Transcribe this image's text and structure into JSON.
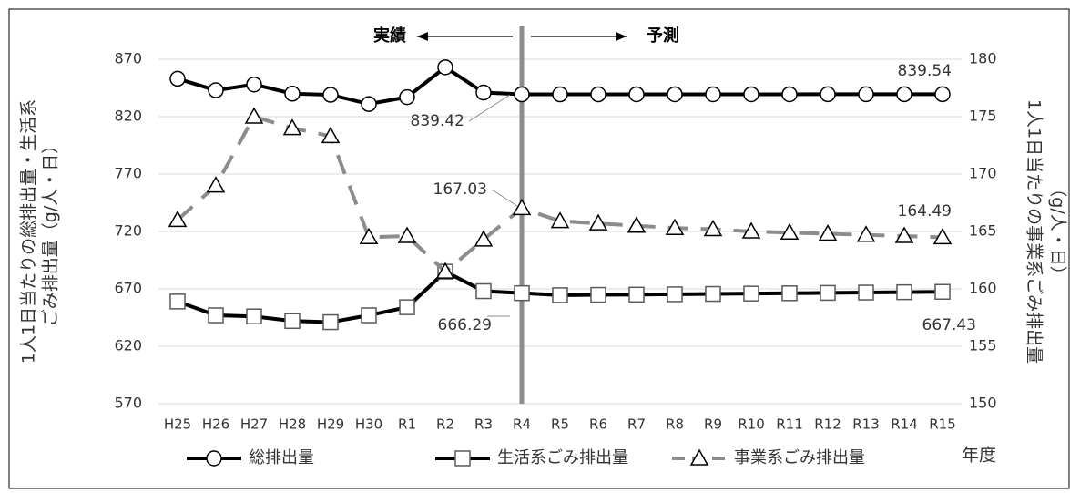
{
  "chart_data": {
    "type": "line",
    "categories": [
      "H25",
      "H26",
      "H27",
      "H28",
      "H29",
      "H30",
      "R1",
      "R2",
      "R3",
      "R4",
      "R5",
      "R6",
      "R7",
      "R8",
      "R9",
      "R10",
      "R11",
      "R12",
      "R13",
      "R14",
      "R15"
    ],
    "series": [
      {
        "name": "総排出量",
        "color": "#000000",
        "line_style": "solid",
        "marker": "circle",
        "values": [
          853,
          843,
          848,
          840,
          839,
          831,
          837,
          863,
          841,
          839.42,
          839.43,
          839.44,
          839.45,
          839.46,
          839.47,
          839.48,
          839.49,
          839.5,
          839.51,
          839.52,
          839.54
        ],
        "value_labels": [
          null,
          null,
          null,
          null,
          null,
          null,
          null,
          null,
          null,
          "839.42",
          null,
          null,
          null,
          null,
          null,
          null,
          null,
          null,
          null,
          null,
          "839.54"
        ]
      },
      {
        "name": "生活系ごみ排出量",
        "color": "#000000",
        "line_style": "solid",
        "marker": "square",
        "values": [
          659,
          647,
          646,
          642,
          641,
          647,
          654,
          685,
          668,
          666.29,
          664.5,
          664.8,
          665,
          665.3,
          665.6,
          665.9,
          666.2,
          666.5,
          666.8,
          667.1,
          667.43
        ],
        "value_labels": [
          null,
          null,
          null,
          null,
          null,
          null,
          null,
          null,
          null,
          "666.29",
          null,
          null,
          null,
          null,
          null,
          null,
          null,
          null,
          null,
          null,
          "667.43"
        ]
      },
      {
        "name": "事業系ごみ排出量",
        "color": "#8c8c8c",
        "line_style": "dashed",
        "marker": "triangle",
        "axis": "y2",
        "values": [
          166,
          169,
          175,
          174,
          173.3,
          164.5,
          164.6,
          161.5,
          164.3,
          167.03,
          165.9,
          165.7,
          165.5,
          165.3,
          165.2,
          165.0,
          164.9,
          164.8,
          164.7,
          164.6,
          164.49
        ],
        "value_labels": [
          null,
          null,
          null,
          null,
          null,
          null,
          null,
          null,
          null,
          "167.03",
          null,
          null,
          null,
          null,
          null,
          null,
          null,
          null,
          null,
          null,
          "164.49"
        ]
      }
    ],
    "ylabel": [
      "1人1日当たりの総排出量・生活系",
      "ごみ排出量（g/人・日）"
    ],
    "y2label": [
      "1人1日当たりの事業系ごみ排出量",
      "（g/人・日）"
    ],
    "xlabel": "年度",
    "annotations": [
      {
        "text": "実績",
        "arrow": "left"
      },
      {
        "text": "予測",
        "arrow": "right"
      }
    ],
    "divider_category": "R4",
    "ylim": [
      570,
      870
    ],
    "yticks": [
      570,
      620,
      670,
      720,
      770,
      820,
      870
    ],
    "y2lim": [
      150,
      180
    ],
    "y2ticks": [
      150,
      155,
      160,
      165,
      170,
      175,
      180
    ],
    "grid": true,
    "legend": "bottom"
  }
}
